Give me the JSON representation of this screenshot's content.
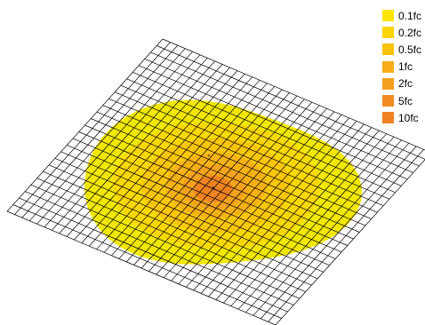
{
  "chart_data": {
    "type": "heatmap",
    "title": "",
    "legend": {
      "position": "top-right",
      "entries": [
        {
          "label": "0.1fc",
          "color": "#FFE600"
        },
        {
          "label": "0.2fc",
          "color": "#FDD600"
        },
        {
          "label": "0.5fc",
          "color": "#FBC20A"
        },
        {
          "label": "1fc",
          "color": "#F7AE16"
        },
        {
          "label": "2fc",
          "color": "#F59F1E"
        },
        {
          "label": "5fc",
          "color": "#F28C22"
        },
        {
          "label": "10fc",
          "color": "#EE8224"
        }
      ]
    },
    "grid": {
      "rows": 26,
      "cols": 36,
      "line_color": "#000000",
      "visible": true
    },
    "colors": {
      "base_fill": "#F2E800",
      "peak_fill": "#EE7E22"
    }
  }
}
